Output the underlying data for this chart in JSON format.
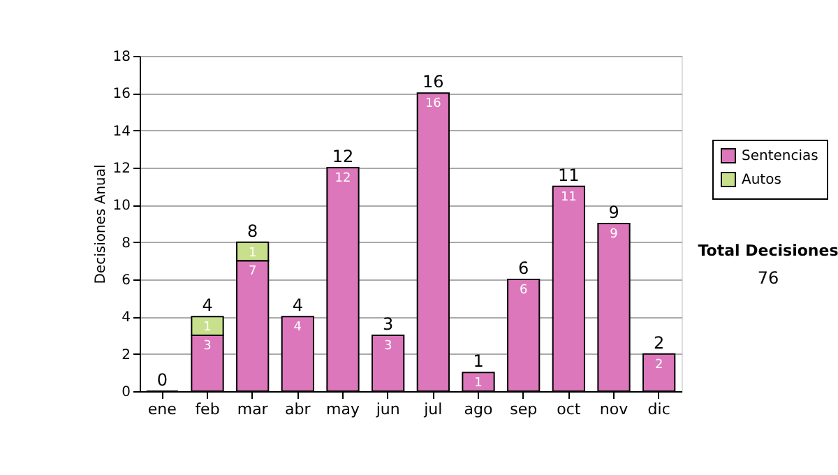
{
  "chart_data": {
    "type": "bar",
    "stacked": true,
    "ylabel": "Decisiones Anual",
    "categories": [
      "ene",
      "feb",
      "mar",
      "abr",
      "may",
      "jun",
      "jul",
      "ago",
      "sep",
      "oct",
      "nov",
      "dic"
    ],
    "series": [
      {
        "name": "Sentencias",
        "color": "#dd77bb",
        "values": [
          0,
          3,
          7,
          4,
          12,
          3,
          16,
          1,
          6,
          11,
          9,
          2
        ],
        "value_labels": [
          null,
          "3",
          "7",
          "4",
          "12",
          "3",
          "16",
          "1",
          "6",
          "11",
          "9",
          "2"
        ]
      },
      {
        "name": "Autos",
        "color": "#c8e08c",
        "values": [
          null,
          1,
          1,
          null,
          null,
          null,
          null,
          null,
          null,
          null,
          null,
          null
        ],
        "value_labels": [
          null,
          "1",
          "1",
          null,
          null,
          null,
          null,
          null,
          null,
          null,
          null,
          null
        ]
      }
    ],
    "totals": [
      "0",
      "4",
      "8",
      "4",
      "12",
      "3",
      "16",
      "1",
      "6",
      "11",
      "9",
      "2"
    ],
    "ylim": [
      0,
      18
    ],
    "yticks": [
      0,
      2,
      4,
      6,
      8,
      10,
      12,
      14,
      16,
      18
    ],
    "grid": "y",
    "legend": "right",
    "annotations": [
      "Total Decisiones",
      "76"
    ]
  }
}
